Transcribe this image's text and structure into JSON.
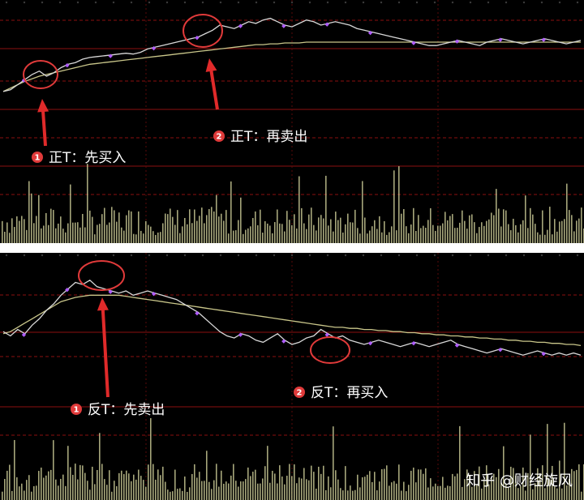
{
  "colors": {
    "background": "#000000",
    "price_line": "#d8d8d8",
    "avg_line": "#c9c68a",
    "grid_red": "#8b1111",
    "grid_dash": "#5a0a0a",
    "volume": "#cfcf9a",
    "marker": "#b05cff",
    "circle": "#e03a3a",
    "arrow": "#e02a2a",
    "badge": "#e03a3a",
    "top_marker": "#2bc46f"
  },
  "panels": [
    {
      "id": "top",
      "annotations": [
        {
          "num": "1",
          "label": "正T：先买入"
        },
        {
          "num": "2",
          "label": "正T：再卖出"
        }
      ]
    },
    {
      "id": "bottom",
      "annotations": [
        {
          "num": "1",
          "label": "反T：先卖出"
        },
        {
          "num": "2",
          "label": "反T：再买入"
        }
      ]
    }
  ],
  "watermark": "知乎 @财经旋风",
  "chart_data": [
    {
      "type": "line",
      "subtype": "intraday_price_with_volume",
      "series": [
        {
          "values": [
            2,
            4,
            10,
            16,
            22,
            26,
            20,
            24,
            30,
            34,
            36,
            40,
            42,
            43,
            44,
            45,
            46,
            47,
            46,
            48,
            52,
            54,
            56,
            58,
            60,
            62,
            64,
            66,
            70,
            74,
            80,
            78,
            76,
            80,
            84,
            82,
            86,
            88,
            84,
            80,
            78,
            82,
            86,
            84,
            80,
            82,
            84,
            82,
            80,
            76,
            74,
            72,
            70,
            68,
            66,
            64,
            62,
            60,
            58,
            56,
            56,
            58,
            60,
            62,
            60,
            58,
            56,
            60,
            62,
            64,
            62,
            60,
            58,
            60,
            62,
            64,
            62,
            60,
            58,
            60,
            62
          ]
        },
        {
          "values": [
            2,
            6,
            10,
            14,
            17,
            20,
            22,
            24,
            26,
            28,
            30,
            32,
            34,
            35,
            36,
            37,
            38,
            39,
            40,
            41,
            42,
            43,
            44,
            45,
            46,
            47,
            48,
            49,
            50,
            51,
            52,
            53,
            54,
            55,
            56,
            57,
            57,
            58,
            58,
            59,
            59,
            59,
            60,
            60,
            60,
            60,
            60,
            60,
            60,
            60,
            60,
            60,
            60,
            60,
            60,
            60,
            60,
            60,
            60,
            60,
            60,
            60,
            60,
            60,
            60,
            60,
            60,
            60,
            60,
            60,
            60,
            60,
            60,
            60,
            60,
            60,
            60,
            60,
            60,
            60,
            60
          ]
        }
      ],
      "annotations": [
        "正T：先买入",
        "正T：再卖出"
      ]
    },
    {
      "type": "line",
      "subtype": "intraday_price_with_volume",
      "series": [
        {
          "values": [
            40,
            36,
            42,
            38,
            46,
            52,
            60,
            66,
            74,
            80,
            86,
            84,
            88,
            82,
            80,
            78,
            76,
            78,
            74,
            76,
            78,
            76,
            74,
            72,
            70,
            66,
            62,
            58,
            52,
            46,
            40,
            36,
            34,
            38,
            36,
            32,
            30,
            34,
            38,
            32,
            28,
            30,
            34,
            36,
            42,
            38,
            34,
            36,
            32,
            30,
            28,
            30,
            32,
            30,
            28,
            26,
            28,
            30,
            28,
            26,
            28,
            30,
            32,
            28,
            26,
            24,
            22,
            20,
            22,
            24,
            22,
            20,
            18,
            20,
            22,
            20,
            18,
            20,
            18,
            20,
            18
          ]
        },
        {
          "values": [
            38,
            40,
            44,
            48,
            52,
            56,
            60,
            64,
            68,
            70,
            72,
            73,
            74,
            74,
            74,
            74,
            74,
            73,
            72,
            71,
            70,
            69,
            68,
            67,
            66,
            65,
            64,
            63,
            62,
            61,
            60,
            59,
            58,
            57,
            56,
            55,
            54,
            53,
            52,
            51,
            50,
            49,
            48,
            47,
            46,
            45,
            44,
            44,
            43,
            43,
            42,
            42,
            41,
            41,
            40,
            40,
            39,
            39,
            38,
            38,
            37,
            37,
            36,
            36,
            35,
            35,
            34,
            34,
            33,
            33,
            32,
            32,
            31,
            31,
            30,
            30,
            29,
            29,
            28,
            28,
            27
          ]
        }
      ],
      "annotations": [
        "反T：先卖出",
        "反T：再买入"
      ]
    }
  ]
}
